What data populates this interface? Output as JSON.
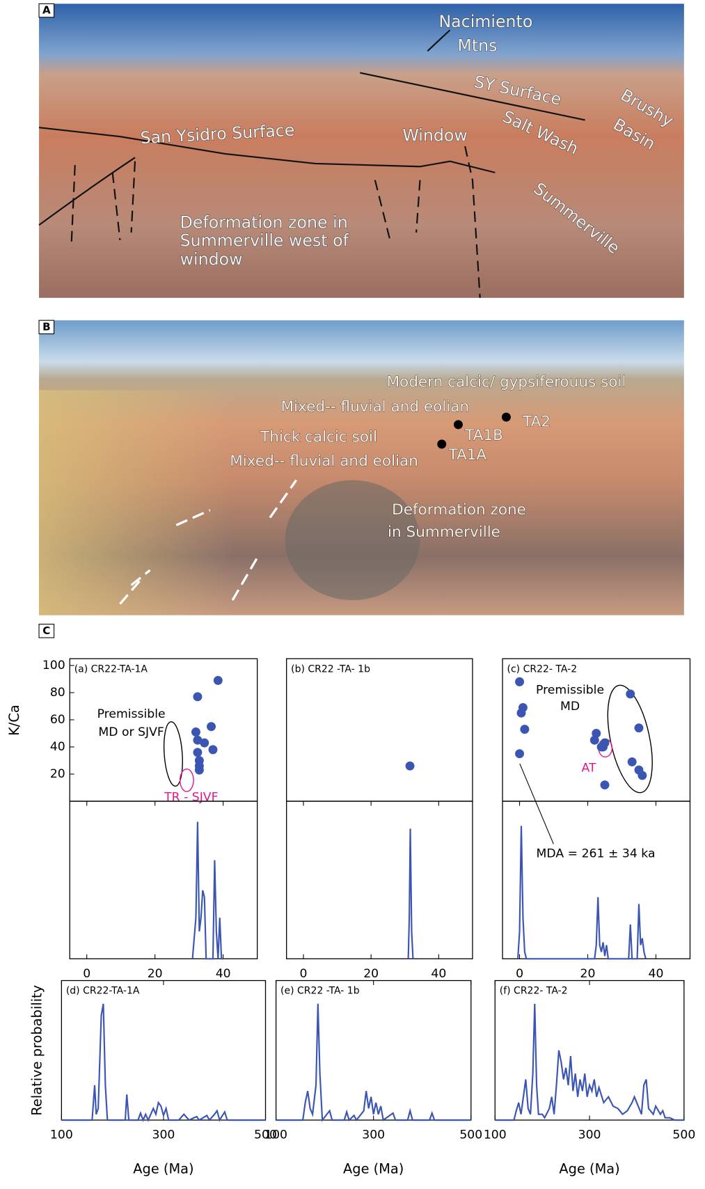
{
  "photo_a": {
    "label": "A",
    "texts": [
      "Nacimiento",
      "Mtns",
      "SY Surface",
      "Brushy",
      "Basin",
      "San Ysidro Surface",
      "Window",
      "Salt Wash",
      "Summerville",
      "Deformation zone in",
      "Summerville west of",
      "window"
    ]
  },
  "photo_b": {
    "label": "B",
    "texts": [
      "Modern calcic/ gypsiferouus soil",
      "Mixed-- fluvial and eolian",
      "TA2",
      "TA1B",
      "Thick calcic soil",
      "TA1A",
      "Mixed-- fluvial and eolian",
      "Deformation zone",
      "in Summerville"
    ]
  },
  "panel_c_label": "C",
  "chart_data": [
    {
      "type": "scatter",
      "title": "(a) CR22-TA-1A",
      "y_label": "K/Ca",
      "color": "#3b56b2",
      "x": [
        32.5,
        38.5,
        32,
        36.5,
        32.5,
        34.5,
        32.5,
        33,
        33,
        33,
        37
      ],
      "values": [
        77,
        89,
        51,
        55,
        45,
        43,
        36,
        30,
        26,
        23,
        38
      ],
      "xlim": [
        -5,
        50
      ],
      "ylim": [
        0,
        105
      ],
      "yticks": [
        20,
        40,
        60,
        80,
        100
      ],
      "annotations": [
        "Premissible",
        "MD or SJVF",
        "TR - SJVF"
      ]
    },
    {
      "type": "scatter",
      "title": "(b) CR22 -TA- 1b",
      "color": "#3b56b2",
      "x": [
        31.5
      ],
      "values": [
        26
      ],
      "xlim": [
        -5,
        50
      ],
      "ylim": [
        0,
        105
      ]
    },
    {
      "type": "scatter",
      "title": "(c) CR22- TA-2",
      "color": "#3b56b2",
      "x": [
        0,
        1,
        0.5,
        1.5,
        0,
        22.5,
        22,
        24,
        25,
        24.5,
        32.5,
        35,
        33,
        35,
        36,
        25
      ],
      "values": [
        88,
        69,
        65,
        53,
        35,
        50,
        45,
        40,
        43,
        40,
        79,
        54,
        29,
        23,
        19,
        12
      ],
      "xlim": [
        -5,
        50
      ],
      "ylim": [
        0,
        105
      ],
      "annotations": [
        "Premissible",
        "MD",
        "AT",
        "MDA = 261 ± 34 ka"
      ]
    },
    {
      "type": "line",
      "color": "#3b56b2",
      "xlim": [
        -5,
        50
      ],
      "ylim": [
        0,
        1.15
      ],
      "xticks": [
        0,
        20,
        40
      ],
      "x": [
        31,
        32,
        32.5,
        33,
        33.5,
        34,
        34.5,
        35,
        37,
        37.5,
        38,
        38.5,
        39,
        39.5,
        40
      ],
      "values": [
        0,
        0.3,
        1.0,
        0.2,
        0.3,
        0.5,
        0.45,
        0,
        0,
        0.72,
        0.2,
        0,
        0.3,
        0,
        0
      ]
    },
    {
      "type": "line",
      "color": "#3b56b2",
      "xlim": [
        -5,
        50
      ],
      "ylim": [
        0,
        1.15
      ],
      "xticks": [
        0,
        20,
        40
      ],
      "x": [
        31,
        31.3,
        31.6,
        32,
        32.4
      ],
      "values": [
        0,
        0.3,
        0.95,
        0.2,
        0
      ]
    },
    {
      "type": "line",
      "color": "#3b56b2",
      "xlim": [
        -5,
        50
      ],
      "ylim": [
        0,
        1.15
      ],
      "xticks": [
        0,
        20,
        40
      ],
      "x": [
        -0.5,
        0,
        0.5,
        1,
        1.5,
        2,
        22,
        22.5,
        23,
        23.5,
        24,
        24.5,
        25,
        25.5,
        26,
        32,
        32.5,
        33,
        34.5,
        35,
        35.5,
        36,
        36.5,
        37
      ],
      "values": [
        0,
        0.2,
        0.97,
        0.3,
        0.05,
        0,
        0,
        0.1,
        0.45,
        0.1,
        0.05,
        0.12,
        0.02,
        0.1,
        0,
        0,
        0.25,
        0,
        0,
        0.4,
        0.1,
        0.15,
        0.05,
        0
      ]
    },
    {
      "type": "line",
      "title": "(d) CR22-TA-1A",
      "y_label": "Relative probability",
      "x_label": "Age (Ma)",
      "color": "#3b56b2",
      "xlim": [
        100,
        500
      ],
      "ylim": [
        0,
        1.2
      ],
      "xticks": [
        100,
        300,
        500
      ],
      "x": [
        100,
        160,
        165,
        168,
        172,
        178,
        182,
        186,
        190,
        225,
        228,
        232,
        250,
        255,
        260,
        265,
        270,
        280,
        285,
        290,
        295,
        300,
        305,
        310,
        330,
        340,
        350,
        365,
        370,
        385,
        390,
        400,
        405,
        410,
        420,
        425,
        500
      ],
      "values": [
        0,
        0,
        0.3,
        0.05,
        0.1,
        0.9,
        1.0,
        0.3,
        0,
        0,
        0.22,
        0,
        0,
        0.06,
        0,
        0.05,
        0,
        0.1,
        0.05,
        0.15,
        0.12,
        0.04,
        0.1,
        0,
        0,
        0.05,
        0,
        0.03,
        0,
        0.04,
        0,
        0.05,
        0.08,
        0,
        0.07,
        0,
        0
      ]
    },
    {
      "type": "line",
      "title": "(e) CR22 -TA- 1b",
      "x_label": "Age (Ma)",
      "color": "#3b56b2",
      "xlim": [
        100,
        500
      ],
      "ylim": [
        0,
        1.2
      ],
      "xticks": [
        100,
        300,
        500
      ],
      "x": [
        100,
        155,
        160,
        165,
        170,
        175,
        182,
        186,
        190,
        195,
        210,
        215,
        240,
        245,
        250,
        260,
        265,
        280,
        285,
        290,
        295,
        300,
        305,
        310,
        315,
        320,
        340,
        345,
        370,
        375,
        380,
        415,
        420,
        425,
        500
      ],
      "values": [
        0,
        0,
        0.15,
        0.25,
        0.1,
        0.05,
        0.3,
        1.0,
        0.4,
        0,
        0.08,
        0,
        0,
        0.07,
        0,
        0.04,
        0,
        0.08,
        0.25,
        0.1,
        0.2,
        0.05,
        0.15,
        0.05,
        0.12,
        0,
        0.06,
        0,
        0,
        0.08,
        0,
        0,
        0.06,
        0,
        0
      ]
    },
    {
      "type": "line",
      "title": "(f) CR22- TA-2",
      "x_label": "Age (Ma)",
      "color": "#3b56b2",
      "xlim": [
        100,
        500
      ],
      "ylim": [
        0,
        1.2
      ],
      "xticks": [
        100,
        300,
        500
      ],
      "x": [
        100,
        140,
        145,
        150,
        155,
        160,
        165,
        170,
        175,
        180,
        184,
        188,
        192,
        200,
        205,
        215,
        220,
        225,
        230,
        235,
        240,
        245,
        250,
        255,
        260,
        265,
        270,
        275,
        280,
        285,
        290,
        295,
        300,
        305,
        310,
        315,
        320,
        330,
        340,
        350,
        360,
        370,
        380,
        390,
        395,
        400,
        410,
        415,
        420,
        425,
        435,
        440,
        450,
        455,
        460,
        470,
        480,
        500
      ],
      "values": [
        0,
        0,
        0.08,
        0.15,
        0.05,
        0.2,
        0.35,
        0.1,
        0.05,
        0.4,
        1.0,
        0.3,
        0.05,
        0.05,
        0.02,
        0.1,
        0.2,
        0.05,
        0.3,
        0.6,
        0.5,
        0.35,
        0.45,
        0.3,
        0.55,
        0.25,
        0.4,
        0.2,
        0.35,
        0.25,
        0.4,
        0.2,
        0.3,
        0.25,
        0.35,
        0.2,
        0.28,
        0.15,
        0.2,
        0.12,
        0.1,
        0.05,
        0.08,
        0.15,
        0.2,
        0.15,
        0.05,
        0.3,
        0.35,
        0.1,
        0.05,
        0.12,
        0.05,
        0.08,
        0.02,
        0.02,
        0,
        0
      ]
    }
  ]
}
